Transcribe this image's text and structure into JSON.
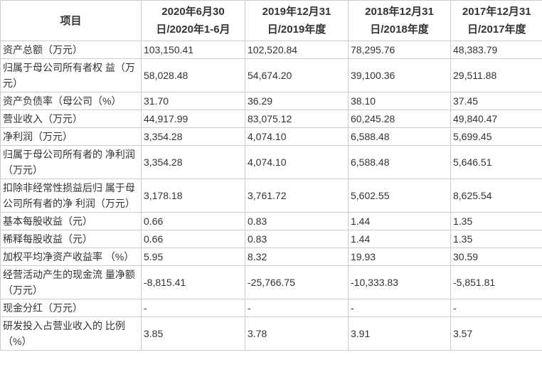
{
  "meta": {
    "border_color": "#cccccc",
    "text_color": "#333333",
    "background_color": "#ffffff"
  },
  "table": {
    "name": "主要财务数据表",
    "columns": [
      "项目",
      "2020年6月30\n日/2020年1-6月",
      "2019年12月31\n日/2019年度",
      "2018年12月31\n日/2018年度",
      "2017年12月31\n日/2017年度"
    ],
    "rows": [
      {
        "label": "资产总额（万元）",
        "values": [
          "103,150.41",
          "102,520.84",
          "78,295.76",
          "48,383.79"
        ]
      },
      {
        "label": "归属于母公司所有者权 益（万元）",
        "values": [
          "58,028.48",
          "54,674.20",
          "39,100.36",
          "29,511.88"
        ]
      },
      {
        "label": "资产负债率（母公司（%）",
        "values": [
          "31.70",
          "36.29",
          "38.10",
          "37.45"
        ]
      },
      {
        "label": "营业收入（万元）",
        "values": [
          "44,917.99",
          "83,075.12",
          "60,245.28",
          "49,840.47"
        ]
      },
      {
        "label": "净利润（万元）",
        "values": [
          "3,354.28",
          "4,074.10",
          "6,588.48",
          "5,699.45"
        ]
      },
      {
        "label": "归属于母公司所有者的 净利润（万元）",
        "values": [
          "3,354.28",
          "4,074.10",
          "6,588.48",
          "5,646.51"
        ]
      },
      {
        "label": "扣除非经常性损益后归 属于母公司所有者的净 利润（万元）",
        "values": [
          "3,178.18",
          "3,761.72",
          "5,602.55",
          "8,625.54"
        ]
      },
      {
        "label": "基本每股收益（元）",
        "values": [
          "0.66",
          "0.83",
          "1.44",
          "1.35"
        ]
      },
      {
        "label": "稀释每股收益（元）",
        "values": [
          "0.66",
          "0.83",
          "1.44",
          "1.35"
        ]
      },
      {
        "label": "加权平均净资产收益率 （%）",
        "values": [
          "5.95",
          "8.32",
          "19.93",
          "30.59"
        ]
      },
      {
        "label": "经营活动产生的现金流 量净额（万元）",
        "values": [
          "-8,815.41",
          "-25,766.75",
          "-10,333.83",
          "-5,851.81"
        ]
      },
      {
        "label": "现金分红（万元）",
        "values": [
          "-",
          "-",
          "-",
          "-"
        ]
      },
      {
        "label": "研发投入占营业收入的 比例（%）",
        "values": [
          "3.85",
          "3.78",
          "3.91",
          "3.57"
        ]
      }
    ]
  }
}
